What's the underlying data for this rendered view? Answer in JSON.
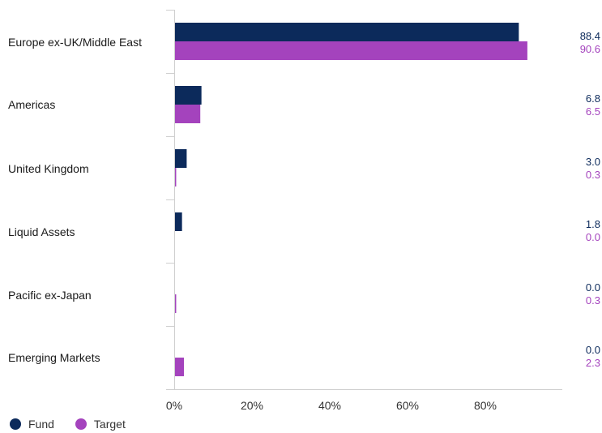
{
  "chart_data": {
    "type": "bar",
    "orientation": "horizontal",
    "categories": [
      "Europe ex-UK/Middle East",
      "Americas",
      "United Kingdom",
      "Liquid Assets",
      "Pacific ex-Japan",
      "Emerging Markets"
    ],
    "series": [
      {
        "name": "Fund",
        "values": [
          88.4,
          6.8,
          3.0,
          1.8,
          0.0,
          0.0
        ],
        "color": "#0c2a5b"
      },
      {
        "name": "Target",
        "values": [
          90.6,
          6.5,
          0.3,
          0.0,
          0.3,
          2.3
        ],
        "color": "#a443bd"
      }
    ],
    "value_labels": {
      "fund": [
        "88.4",
        "6.8",
        "3.0",
        "1.8",
        "0.0",
        "0.0"
      ],
      "target": [
        "90.6",
        "6.5",
        "0.3",
        "0.0",
        "0.3",
        "2.3"
      ]
    },
    "x_ticks": [
      "0%",
      "20%",
      "40%",
      "60%",
      "80%"
    ],
    "xlim": [
      0,
      100
    ],
    "grid": false,
    "legend_position": "bottom-left"
  },
  "legend": {
    "fund_label": "Fund",
    "target_label": "Target",
    "fund_color": "#0c2a5b",
    "target_color": "#a443bd"
  }
}
